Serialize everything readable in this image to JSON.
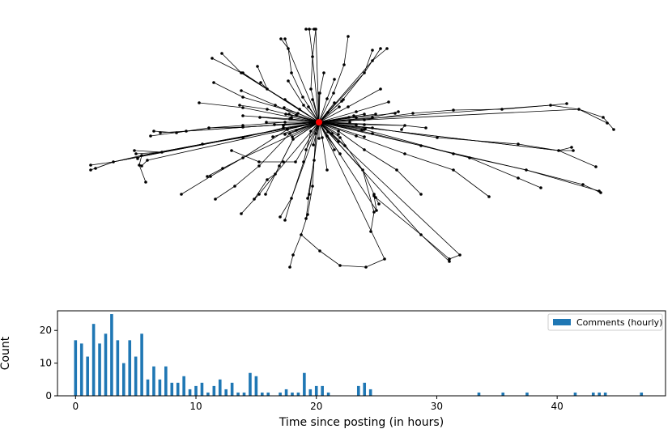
{
  "colors": {
    "bar": "#1f77b4",
    "edge": "#000000",
    "node": "#000000",
    "root": "#ff0000",
    "axes": "#000000",
    "legend_frame": "#cccccc"
  },
  "chart_data": [
    {
      "type": "network",
      "description_of_marks": "comment reply tree",
      "root_color": "#ff0000"
    },
    {
      "type": "bar",
      "xlabel": "Time since posting (in hours)",
      "ylabel": "Count",
      "xlim": [
        -1.5,
        49
      ],
      "ylim": [
        0,
        26
      ],
      "xticks": [
        0,
        10,
        20,
        30,
        40
      ],
      "yticks": [
        0,
        10,
        20
      ],
      "xtick_labels": [
        "0",
        "10",
        "20",
        "30",
        "40"
      ],
      "ytick_labels": [
        "0",
        "10",
        "20"
      ],
      "legend": {
        "label": "Comments (hourly)",
        "placement": "top-right"
      },
      "series": [
        {
          "name": "Comments (hourly)",
          "x": [
            0,
            0.5,
            1,
            1.5,
            2,
            2.5,
            3,
            3.5,
            4,
            4.5,
            5,
            5.5,
            6,
            6.5,
            7,
            7.5,
            8,
            8.5,
            9,
            9.5,
            10,
            10.5,
            11,
            11.5,
            12,
            12.5,
            13,
            13.5,
            14,
            14.5,
            15,
            15.5,
            16,
            17,
            17.5,
            18,
            18.5,
            19,
            19.5,
            20,
            20.5,
            21,
            23.5,
            24,
            24.5,
            33.5,
            35.5,
            37.5,
            41.5,
            43,
            43.5,
            44,
            47
          ],
          "values": [
            17,
            16,
            12,
            22,
            16,
            19,
            25,
            17,
            10,
            17,
            12,
            19,
            5,
            9,
            5,
            9,
            4,
            4,
            6,
            2,
            3,
            4,
            1,
            3,
            5,
            2,
            4,
            1,
            1,
            7,
            6,
            1,
            1,
            1,
            2,
            1,
            1,
            7,
            2,
            3,
            3,
            1,
            3,
            4,
            2,
            1,
            1,
            1,
            1,
            1,
            1,
            1,
            1
          ]
        }
      ]
    }
  ]
}
